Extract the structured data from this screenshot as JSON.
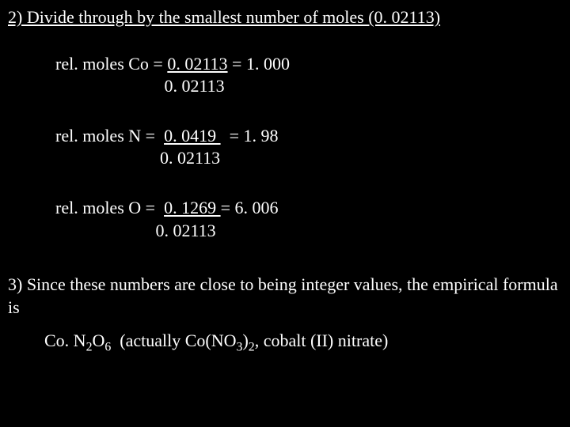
{
  "heading": "2) Divide through by the smallest number of moles (0. 02113)",
  "co": {
    "line1_pre": "rel. moles Co = ",
    "line1_num": "0. 02113",
    "line1_post": " = 1. 000",
    "line2_indent": "                         0. 02113"
  },
  "n": {
    "line1_pre": "rel. moles N =  ",
    "line1_num": " 0. 0419 ",
    "line1_post": "  = 1. 98",
    "line2_indent": "                        0. 02113"
  },
  "o": {
    "line1_pre": "rel. moles O =  ",
    "line1_num": " 0. 1269 ",
    "line1_post": " = 6. 006",
    "line2_indent": "                       0. 02113"
  },
  "step3": "3) Since these numbers are close to being integer values, the empirical formula is",
  "formula": {
    "p1": "Co. N",
    "s1": "2",
    "p2": "O",
    "s2": "6",
    "p3": "  (actually Co(NO",
    "s3": "3",
    "p4": ")",
    "s4": "2",
    "p5": ", cobalt (II) nitrate)"
  }
}
